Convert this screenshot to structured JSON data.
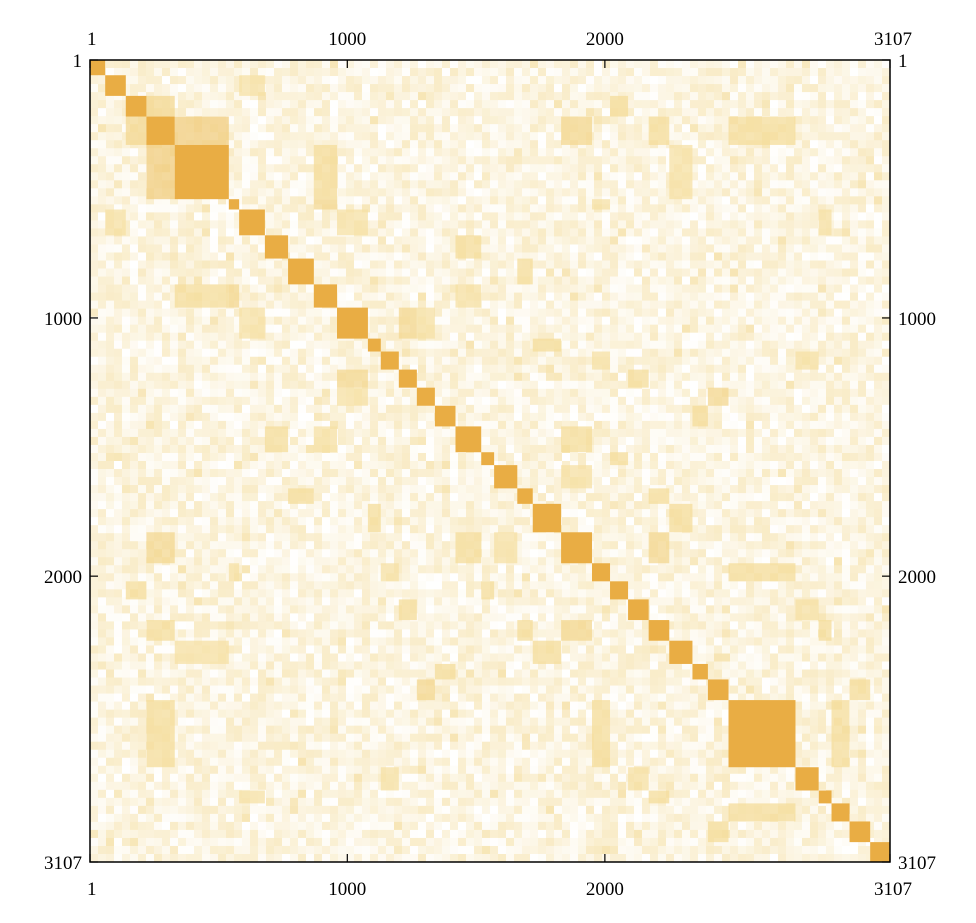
{
  "chart_data": {
    "type": "heatmap",
    "title": "",
    "xlabel": "",
    "ylabel": "",
    "xlim": [
      1,
      3107
    ],
    "ylim": [
      1,
      3107
    ],
    "y_inverted": true,
    "tick_values": [
      1,
      1000,
      2000,
      3107
    ],
    "tick_labels": [
      "1",
      "1000",
      "2000",
      "3107"
    ],
    "tick_label_sides": [
      "top",
      "bottom",
      "left",
      "right"
    ],
    "colormap": {
      "low": "#ffffff",
      "mid": "#f4dc9a",
      "high": "#e8a83a"
    },
    "background_texture": "fine-grained pale yellow correlation noise",
    "diagonal_blocks": [
      [
        1,
        60
      ],
      [
        60,
        140
      ],
      [
        140,
        220
      ],
      [
        220,
        330
      ],
      [
        330,
        540
      ],
      [
        540,
        580
      ],
      [
        580,
        680
      ],
      [
        680,
        770
      ],
      [
        770,
        870
      ],
      [
        870,
        960
      ],
      [
        960,
        1080
      ],
      [
        1080,
        1130
      ],
      [
        1130,
        1200
      ],
      [
        1200,
        1270
      ],
      [
        1270,
        1340
      ],
      [
        1340,
        1420
      ],
      [
        1420,
        1520
      ],
      [
        1520,
        1570
      ],
      [
        1570,
        1660
      ],
      [
        1660,
        1720
      ],
      [
        1720,
        1830
      ],
      [
        1830,
        1950
      ],
      [
        1950,
        2020
      ],
      [
        2020,
        2090
      ],
      [
        2090,
        2170
      ],
      [
        2170,
        2250
      ],
      [
        2250,
        2340
      ],
      [
        2340,
        2400
      ],
      [
        2400,
        2480
      ],
      [
        2480,
        2740
      ],
      [
        2740,
        2830
      ],
      [
        2830,
        2880
      ],
      [
        2880,
        2950
      ],
      [
        2950,
        3030
      ],
      [
        3030,
        3107
      ]
    ],
    "off_diagonal_blocks": [
      [
        2,
        3,
        0.35
      ],
      [
        3,
        4,
        0.45
      ],
      [
        4,
        9,
        0.3
      ],
      [
        4,
        26,
        0.25
      ],
      [
        5,
        9,
        0.35
      ],
      [
        6,
        10,
        0.25
      ],
      [
        7,
        16,
        0.3
      ],
      [
        3,
        21,
        0.35
      ],
      [
        3,
        25,
        0.3
      ],
      [
        8,
        19,
        0.3
      ],
      [
        10,
        13,
        0.35
      ],
      [
        11,
        20,
        0.3
      ],
      [
        12,
        22,
        0.25
      ],
      [
        13,
        24,
        0.3
      ],
      [
        14,
        28,
        0.35
      ],
      [
        15,
        27,
        0.3
      ],
      [
        17,
        23,
        0.3
      ],
      [
        18,
        21,
        0.25
      ],
      [
        20,
        26,
        0.3
      ],
      [
        21,
        25,
        0.35
      ],
      [
        22,
        29,
        0.3
      ],
      [
        24,
        30,
        0.25
      ],
      [
        25,
        31,
        0.3
      ],
      [
        28,
        33,
        0.3
      ],
      [
        29,
        32,
        0.3
      ],
      [
        1,
        6,
        0.25
      ],
      [
        2,
        23,
        0.3
      ],
      [
        3,
        29,
        0.3
      ],
      [
        9,
        16,
        0.25
      ],
      [
        16,
        21,
        0.3
      ],
      [
        10,
        14,
        0.25
      ],
      [
        12,
        30,
        0.25
      ],
      [
        5,
        22,
        0.25
      ],
      [
        19,
        25,
        0.3
      ],
      [
        6,
        31,
        0.25
      ]
    ],
    "block_intensity_notes": "darkest on the diagonal; largest diagonal block near rows 2480-2740"
  }
}
